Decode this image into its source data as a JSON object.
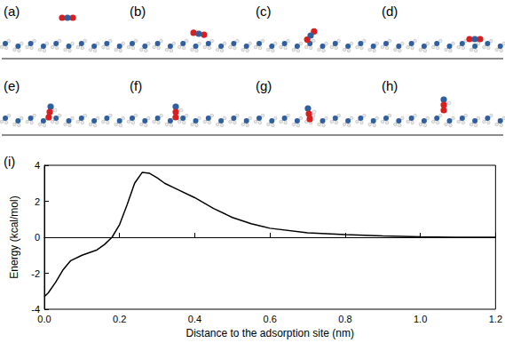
{
  "panels": [
    "(a)",
    "(b)",
    "(c)",
    "(d)",
    "(e)",
    "(f)",
    "(g)",
    "(h)"
  ],
  "chart_data": {
    "type": "line",
    "title": "(i)",
    "x_label": "Distance to the adsorption site (nm)",
    "y_label": "Energy (kcal/mol)",
    "x": [
      0,
      0.01,
      0.03,
      0.05,
      0.07,
      0.1,
      0.12,
      0.14,
      0.16,
      0.18,
      0.2,
      0.22,
      0.24,
      0.26,
      0.28,
      0.3,
      0.32,
      0.35,
      0.4,
      0.45,
      0.5,
      0.55,
      0.6,
      0.7,
      0.8,
      0.9,
      1.0,
      1.1,
      1.2
    ],
    "values": [
      -3.3,
      -3.1,
      -2.5,
      -1.8,
      -1.3,
      -1.0,
      -0.85,
      -0.7,
      -0.4,
      0.0,
      0.7,
      1.8,
      3.0,
      3.6,
      3.55,
      3.3,
      3.0,
      2.7,
      2.2,
      1.6,
      1.1,
      0.75,
      0.5,
      0.25,
      0.15,
      0.08,
      0.03,
      0.0,
      0.0
    ],
    "color": "#000000",
    "xlim": [
      0,
      1.2
    ],
    "xticks": [
      {
        "value": 0,
        "label": "0.0"
      },
      0.2,
      0.4,
      0.6,
      0.8,
      {
        "value": 1,
        "label": "1.0"
      },
      1.2
    ],
    "ylim": [
      -4,
      4
    ],
    "yticks": [
      -4,
      -2,
      0,
      2,
      4
    ],
    "reference_lines": [
      {
        "y": 0,
        "line_style": "dashed"
      }
    ],
    "grid": false
  }
}
